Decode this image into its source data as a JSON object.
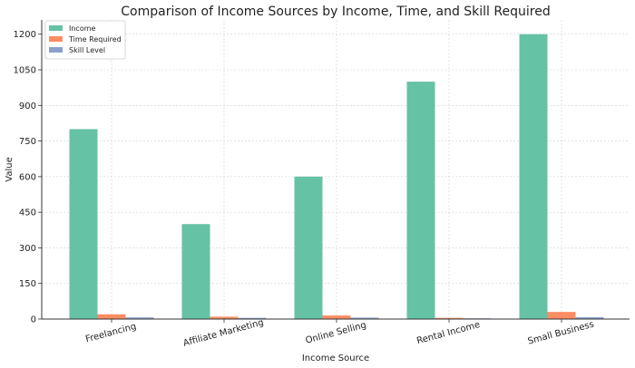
{
  "chart_data": {
    "type": "bar",
    "title": "Comparison of Income Sources by Income, Time, and Skill Required",
    "xlabel": "Income Source",
    "ylabel": "Value",
    "categories": [
      "Freelancing",
      "Affiliate Marketing",
      "Online Selling",
      "Rental Income",
      "Small Business"
    ],
    "series": [
      {
        "name": "Income",
        "color": "#66c2a5",
        "values": [
          800,
          400,
          600,
          1000,
          1200
        ]
      },
      {
        "name": "Time Required",
        "color": "#fc8d62",
        "values": [
          20,
          10,
          15,
          5,
          30
        ]
      },
      {
        "name": "Skill Level",
        "color": "#8da0cb",
        "values": [
          7,
          5,
          6,
          3,
          8
        ]
      }
    ],
    "yticks": [
      0,
      150,
      300,
      450,
      600,
      750,
      900,
      1050,
      1200
    ],
    "ylim": [
      0,
      1260
    ],
    "grid": true,
    "legend_position": "top-left"
  }
}
